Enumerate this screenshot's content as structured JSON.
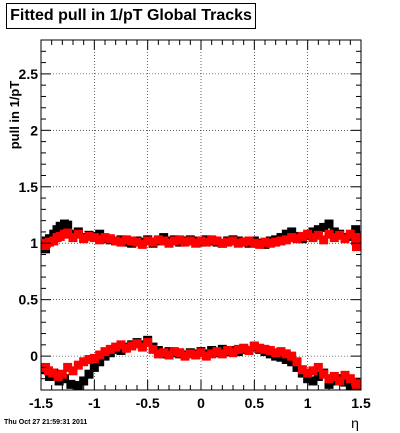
{
  "footer_text": "Thu Oct 27 21:59:31 2011",
  "chart_data": {
    "type": "scatter",
    "title": "Fitted pull in 1/pT  Global Tracks",
    "xlabel": "η",
    "ylabel": "pull in 1/pT",
    "xlim": [
      -1.5,
      1.5
    ],
    "ylim": [
      -0.3,
      2.8
    ],
    "grid": true,
    "marker": "square",
    "xticks": [
      -1.5,
      -1,
      -0.5,
      0,
      0.5,
      1,
      1.5
    ],
    "xtick_labels": [
      "-1.5",
      "-1",
      "-0.5",
      "0",
      "0.5",
      "1",
      "1.5"
    ],
    "yticks": [
      0,
      0.5,
      1,
      1.5,
      2,
      2.5
    ],
    "ytick_labels": [
      "0",
      "0.5",
      "1",
      "1.5",
      "2",
      "2.5"
    ],
    "series": [
      {
        "color": "#000000",
        "points": [
          [
            -1.48,
            0.95
          ],
          [
            -1.45,
            1.02
          ],
          [
            -1.42,
            1.04
          ],
          [
            -1.38,
            1.08
          ],
          [
            -1.35,
            1.12
          ],
          [
            -1.32,
            1.15
          ],
          [
            -1.28,
            1.17
          ],
          [
            -1.25,
            1.16
          ],
          [
            -1.2,
            1.08
          ],
          [
            -1.15,
            1.1
          ],
          [
            -1.1,
            1.05
          ],
          [
            -1.05,
            1.07
          ],
          [
            -1.0,
            1.06
          ],
          [
            -0.95,
            1.08
          ],
          [
            -0.9,
            1.04
          ],
          [
            -0.85,
            1.03
          ],
          [
            -0.8,
            1.02
          ],
          [
            -0.75,
            1.03
          ],
          [
            -0.7,
            1.01
          ],
          [
            -0.65,
            1.0
          ],
          [
            -0.6,
            1.02
          ],
          [
            -0.55,
            1.01
          ],
          [
            -0.5,
            1.03
          ],
          [
            -0.45,
            1.0
          ],
          [
            -0.4,
            1.02
          ],
          [
            -0.35,
            1.05
          ],
          [
            -0.3,
            1.02
          ],
          [
            -0.25,
            1.03
          ],
          [
            -0.2,
            1.01
          ],
          [
            -0.15,
            1.02
          ],
          [
            -0.1,
            1.03
          ],
          [
            -0.05,
            1.02
          ],
          [
            0.0,
            1.01
          ],
          [
            0.05,
            1.03
          ],
          [
            0.1,
            1.02
          ],
          [
            0.15,
            1.01
          ],
          [
            0.2,
            1.0
          ],
          [
            0.25,
            1.02
          ],
          [
            0.3,
            1.03
          ],
          [
            0.35,
            1.02
          ],
          [
            0.4,
            1.01
          ],
          [
            0.45,
            1.0
          ],
          [
            0.5,
            1.02
          ],
          [
            0.55,
            1.0
          ],
          [
            0.6,
            0.99
          ],
          [
            0.65,
            1.02
          ],
          [
            0.7,
            1.03
          ],
          [
            0.75,
            1.05
          ],
          [
            0.8,
            1.08
          ],
          [
            0.85,
            1.1
          ],
          [
            0.9,
            1.06
          ],
          [
            0.95,
            1.04
          ],
          [
            1.0,
            1.07
          ],
          [
            1.05,
            1.1
          ],
          [
            1.1,
            1.12
          ],
          [
            1.15,
            1.14
          ],
          [
            1.2,
            1.17
          ],
          [
            1.25,
            1.1
          ],
          [
            1.3,
            1.08
          ],
          [
            1.35,
            1.05
          ],
          [
            1.4,
            1.06
          ],
          [
            1.45,
            1.12
          ],
          [
            1.48,
            1.0
          ],
          [
            -1.47,
            -0.12
          ],
          [
            -1.42,
            -0.18
          ],
          [
            -1.38,
            -0.15
          ],
          [
            -1.33,
            -0.22
          ],
          [
            -1.28,
            -0.2
          ],
          [
            -1.22,
            -0.25
          ],
          [
            -1.15,
            -0.28
          ],
          [
            -1.1,
            -0.22
          ],
          [
            -1.05,
            -0.16
          ],
          [
            -1.0,
            -0.1
          ],
          [
            -0.95,
            -0.05
          ],
          [
            -0.9,
            0.0
          ],
          [
            -0.85,
            0.03
          ],
          [
            -0.8,
            0.06
          ],
          [
            -0.75,
            0.05
          ],
          [
            -0.7,
            0.08
          ],
          [
            -0.65,
            0.1
          ],
          [
            -0.6,
            0.12
          ],
          [
            -0.55,
            0.1
          ],
          [
            -0.5,
            0.14
          ],
          [
            -0.45,
            0.08
          ],
          [
            -0.4,
            0.05
          ],
          [
            -0.35,
            0.02
          ],
          [
            -0.3,
            0.04
          ],
          [
            -0.25,
            0.03
          ],
          [
            -0.2,
            0.02
          ],
          [
            -0.15,
            0.01
          ],
          [
            -0.1,
            0.03
          ],
          [
            -0.05,
            0.02
          ],
          [
            0.0,
            0.04
          ],
          [
            0.05,
            0.02
          ],
          [
            0.1,
            0.05
          ],
          [
            0.15,
            0.03
          ],
          [
            0.2,
            0.06
          ],
          [
            0.25,
            0.04
          ],
          [
            0.3,
            0.05
          ],
          [
            0.35,
            0.04
          ],
          [
            0.4,
            0.06
          ],
          [
            0.45,
            0.05
          ],
          [
            0.5,
            0.08
          ],
          [
            0.55,
            0.06
          ],
          [
            0.6,
            0.04
          ],
          [
            0.65,
            0.02
          ],
          [
            0.7,
            0.0
          ],
          [
            0.75,
            -0.01
          ],
          [
            0.8,
            -0.03
          ],
          [
            0.85,
            -0.05
          ],
          [
            0.9,
            -0.1
          ],
          [
            0.95,
            -0.15
          ],
          [
            1.0,
            -0.2
          ],
          [
            1.05,
            -0.22
          ],
          [
            1.1,
            -0.18
          ],
          [
            1.15,
            -0.15
          ],
          [
            1.2,
            -0.25
          ],
          [
            1.25,
            -0.22
          ],
          [
            1.3,
            -0.2
          ],
          [
            1.35,
            -0.23
          ],
          [
            1.4,
            -0.26
          ],
          [
            1.45,
            -0.24
          ],
          [
            1.48,
            -0.27
          ]
        ]
      },
      {
        "color": "#ff0000",
        "points": [
          [
            -1.48,
            0.98
          ],
          [
            -1.45,
            1.0
          ],
          [
            -1.42,
            1.01
          ],
          [
            -1.38,
            1.02
          ],
          [
            -1.35,
            1.05
          ],
          [
            -1.32,
            1.06
          ],
          [
            -1.28,
            1.08
          ],
          [
            -1.25,
            1.09
          ],
          [
            -1.2,
            1.05
          ],
          [
            -1.15,
            1.08
          ],
          [
            -1.1,
            1.04
          ],
          [
            -1.05,
            1.06
          ],
          [
            -1.0,
            1.05
          ],
          [
            -0.95,
            1.03
          ],
          [
            -0.9,
            1.05
          ],
          [
            -0.85,
            1.04
          ],
          [
            -0.8,
            1.02
          ],
          [
            -0.75,
            1.01
          ],
          [
            -0.7,
            1.03
          ],
          [
            -0.65,
            1.02
          ],
          [
            -0.6,
            1.01
          ],
          [
            -0.55,
            0.99
          ],
          [
            -0.5,
            1.02
          ],
          [
            -0.45,
            1.01
          ],
          [
            -0.4,
            1.03
          ],
          [
            -0.35,
            1.02
          ],
          [
            -0.3,
            1.0
          ],
          [
            -0.25,
            1.02
          ],
          [
            -0.2,
            1.03
          ],
          [
            -0.15,
            1.01
          ],
          [
            -0.1,
            1.02
          ],
          [
            -0.05,
            1.0
          ],
          [
            0.0,
            1.02
          ],
          [
            0.05,
            1.01
          ],
          [
            0.1,
            1.03
          ],
          [
            0.15,
            1.02
          ],
          [
            0.2,
            1.0
          ],
          [
            0.25,
            1.01
          ],
          [
            0.3,
            1.02
          ],
          [
            0.35,
            1.0
          ],
          [
            0.4,
            1.01
          ],
          [
            0.45,
            1.02
          ],
          [
            0.5,
            1.0
          ],
          [
            0.55,
            0.99
          ],
          [
            0.6,
            1.01
          ],
          [
            0.65,
            1.0
          ],
          [
            0.7,
            1.01
          ],
          [
            0.75,
            1.02
          ],
          [
            0.8,
            1.03
          ],
          [
            0.85,
            1.05
          ],
          [
            0.9,
            1.04
          ],
          [
            0.95,
            1.06
          ],
          [
            1.0,
            1.08
          ],
          [
            1.05,
            1.05
          ],
          [
            1.1,
            1.07
          ],
          [
            1.15,
            1.03
          ],
          [
            1.2,
            1.08
          ],
          [
            1.25,
            1.05
          ],
          [
            1.3,
            1.07
          ],
          [
            1.35,
            1.04
          ],
          [
            1.4,
            1.08
          ],
          [
            1.45,
            1.02
          ],
          [
            1.48,
            1.05
          ],
          [
            1.47,
            0.97
          ],
          [
            -1.47,
            -0.1
          ],
          [
            -1.43,
            -0.13
          ],
          [
            -1.39,
            -0.15
          ],
          [
            -1.34,
            -0.18
          ],
          [
            -1.3,
            -0.16
          ],
          [
            -1.25,
            -0.1
          ],
          [
            -1.2,
            -0.13
          ],
          [
            -1.15,
            -0.08
          ],
          [
            -1.1,
            -0.05
          ],
          [
            -1.05,
            -0.03
          ],
          [
            -1.0,
            -0.02
          ],
          [
            -0.95,
            0.01
          ],
          [
            -0.9,
            0.04
          ],
          [
            -0.85,
            0.06
          ],
          [
            -0.8,
            0.08
          ],
          [
            -0.75,
            0.1
          ],
          [
            -0.7,
            0.07
          ],
          [
            -0.65,
            0.09
          ],
          [
            -0.6,
            0.11
          ],
          [
            -0.55,
            0.08
          ],
          [
            -0.5,
            0.12
          ],
          [
            -0.45,
            0.06
          ],
          [
            -0.4,
            0.02
          ],
          [
            -0.35,
            0.03
          ],
          [
            -0.3,
            0.01
          ],
          [
            -0.25,
            0.04
          ],
          [
            -0.2,
            0.03
          ],
          [
            -0.15,
            0.0
          ],
          [
            -0.1,
            0.02
          ],
          [
            -0.05,
            0.01
          ],
          [
            0.0,
            0.03
          ],
          [
            0.05,
            0.0
          ],
          [
            0.1,
            0.02
          ],
          [
            0.15,
            0.04
          ],
          [
            0.2,
            0.02
          ],
          [
            0.25,
            0.05
          ],
          [
            0.3,
            0.03
          ],
          [
            0.35,
            0.06
          ],
          [
            0.4,
            0.07
          ],
          [
            0.45,
            0.05
          ],
          [
            0.5,
            0.09
          ],
          [
            0.55,
            0.07
          ],
          [
            0.6,
            0.06
          ],
          [
            0.65,
            0.05
          ],
          [
            0.7,
            0.03
          ],
          [
            0.75,
            0.04
          ],
          [
            0.8,
            0.02
          ],
          [
            0.85,
            0.0
          ],
          [
            0.9,
            -0.05
          ],
          [
            0.95,
            -0.12
          ],
          [
            1.0,
            -0.15
          ],
          [
            1.05,
            -0.13
          ],
          [
            1.1,
            -0.1
          ],
          [
            1.15,
            -0.16
          ],
          [
            1.2,
            -0.2
          ],
          [
            1.25,
            -0.18
          ],
          [
            1.3,
            -0.22
          ],
          [
            1.35,
            -0.17
          ],
          [
            1.4,
            -0.2
          ],
          [
            1.45,
            -0.23
          ],
          [
            1.48,
            -0.25
          ]
        ]
      }
    ]
  }
}
